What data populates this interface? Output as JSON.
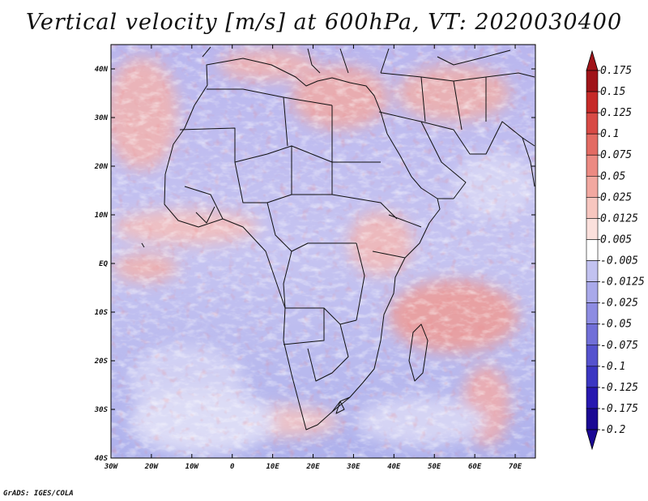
{
  "title": "Vertical velocity [m/s] at 600hPa, VT: 2020030400",
  "footer": "GrADS: IGES/COLA",
  "map": {
    "variable": "Vertical velocity",
    "units": "m/s",
    "level": "600hPa",
    "valid_time": "2020030400",
    "lon_range": [
      -30,
      75
    ],
    "lat_range": [
      -40,
      45
    ],
    "lon_ticks": [
      "30W",
      "20W",
      "10W",
      "0",
      "10E",
      "20E",
      "30E",
      "40E",
      "50E",
      "60E",
      "70E"
    ],
    "lat_ticks": [
      "40N",
      "30N",
      "20N",
      "10N",
      "EQ",
      "10S",
      "20S",
      "30S",
      "40S"
    ]
  },
  "colorbar": {
    "labels": [
      "0.175",
      "0.15",
      "0.125",
      "0.1",
      "0.075",
      "0.05",
      "0.025",
      "0.0125",
      "0.005",
      "-0.005",
      "-0.0125",
      "-0.025",
      "-0.05",
      "-0.075",
      "-0.1",
      "-0.125",
      "-0.175",
      "-0.2"
    ],
    "colors": [
      "#a01419",
      "#c62a28",
      "#d84a45",
      "#e36b63",
      "#ec8a82",
      "#f2a8a0",
      "#f7c6bf",
      "#fbe0dc",
      "#ffffff",
      "#dcdcf6",
      "#c2c2f0",
      "#a9a9ea",
      "#8d8ce2",
      "#716fd8",
      "#5552ce",
      "#3b36c2",
      "#2718b0",
      "#1a0894"
    ]
  }
}
